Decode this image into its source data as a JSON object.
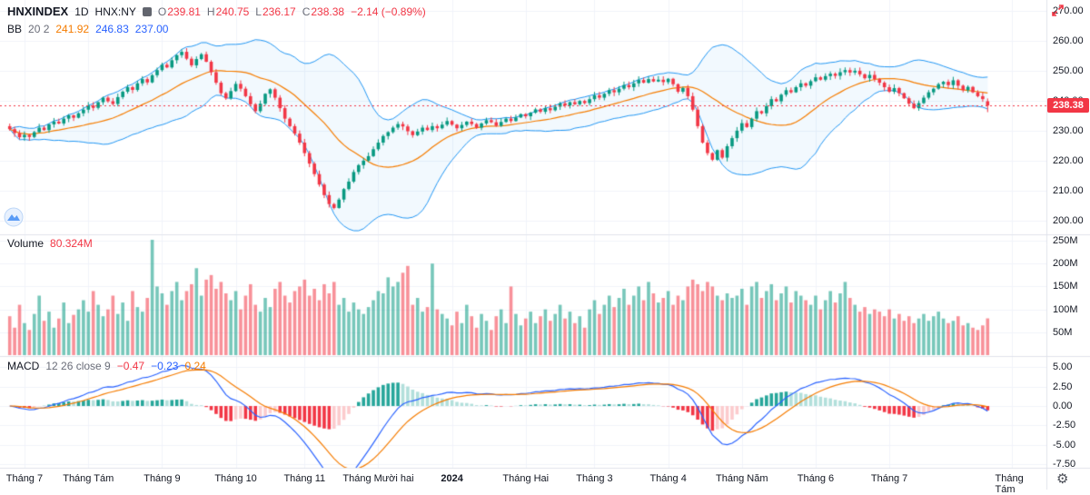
{
  "header": {
    "symbol": "HNXINDEX",
    "interval": "1D",
    "exchange": "HNX:NY",
    "ohlc": {
      "o_label": "O",
      "o": "239.81",
      "h_label": "H",
      "h": "240.75",
      "l_label": "L",
      "l": "236.17",
      "c_label": "C",
      "c": "238.38",
      "change": "−2.14 (−0.89%)"
    },
    "bb": {
      "name": "BB",
      "params": "20 2",
      "basis": "241.92",
      "upper": "246.83",
      "lower": "237.00"
    }
  },
  "volume_panel": {
    "label": "Volume",
    "value": "80.324M"
  },
  "macd_panel": {
    "label": "MACD",
    "params": "12 26 close 9",
    "hist": "−0.47",
    "macd": "−0.23",
    "signal": "0.24"
  },
  "price_badge": "238.38",
  "icons": {
    "settings": "⚙",
    "watermark": "mountain-logo",
    "maximize": "expand-arrows"
  },
  "colors": {
    "up": "#089981",
    "down": "#f23645",
    "vol_up": "rgba(8,153,129,0.55)",
    "vol_down": "rgba(242,54,69,0.55)",
    "bb_band": "#2196f3",
    "bb_basis": "#f57c00",
    "bb_fill": "rgba(33,150,243,0.06)",
    "macd_line": "#2962ff",
    "signal_line": "#f57c00",
    "hist_up": "#26a69a",
    "hist_up_light": "#b2dfdb",
    "hist_down": "#f23645",
    "hist_down_light": "#fccbcd",
    "grid": "#f0f3fa",
    "separator": "#e0e3eb",
    "badge_bg": "#f23645"
  },
  "chart_data": {
    "type": "candlestick",
    "title": "HNXINDEX 1D HNX:NY",
    "panels": [
      "price+bollinger",
      "volume",
      "macd"
    ],
    "price_axis_ticks": [
      {
        "label": "270.00",
        "v": 270
      },
      {
        "label": "260.00",
        "v": 260
      },
      {
        "label": "250.00",
        "v": 250
      },
      {
        "label": "240.00",
        "v": 240
      },
      {
        "label": "230.00",
        "v": 230
      },
      {
        "label": "220.00",
        "v": 220
      },
      {
        "label": "210.00",
        "v": 210
      },
      {
        "label": "200.00",
        "v": 200
      }
    ],
    "volume_axis_ticks": [
      {
        "label": "250M",
        "v": 250
      },
      {
        "label": "200M",
        "v": 200
      },
      {
        "label": "150M",
        "v": 150
      },
      {
        "label": "100M",
        "v": 100
      },
      {
        "label": "50M",
        "v": 50
      }
    ],
    "macd_axis_ticks": [
      {
        "label": "5.00",
        "v": 5
      },
      {
        "label": "2.50",
        "v": 2.5
      },
      {
        "label": "0.00",
        "v": 0
      },
      {
        "label": "-2.50",
        "v": -2.5
      },
      {
        "label": "-5.00",
        "v": -5
      },
      {
        "label": "-7.50",
        "v": -7.5
      }
    ],
    "x_labels": [
      {
        "label": "Tháng 7",
        "i": 3
      },
      {
        "label": "Tháng Tám",
        "i": 16
      },
      {
        "label": "Tháng 9",
        "i": 31
      },
      {
        "label": "Tháng 10",
        "i": 46
      },
      {
        "label": "Tháng 11",
        "i": 60
      },
      {
        "label": "Tháng Mười hai",
        "i": 75
      },
      {
        "label": "2024",
        "i": 90,
        "bold": true
      },
      {
        "label": "Tháng Hai",
        "i": 105
      },
      {
        "label": "Tháng 3",
        "i": 119
      },
      {
        "label": "Tháng 4",
        "i": 134
      },
      {
        "label": "Tháng Năm",
        "i": 149
      },
      {
        "label": "Tháng 6",
        "i": 164
      },
      {
        "label": "Tháng 7",
        "i": 179
      },
      {
        "label": "Tháng Tám",
        "i": 204
      }
    ],
    "price_range": [
      195.4,
      273.6
    ],
    "volume_range_m": [
      0,
      264
    ],
    "macd_range": [
      -7.97,
      6.33
    ],
    "last_price": 238.38,
    "last_candle": {
      "open": 239.81,
      "high": 240.75,
      "low": 236.17,
      "close": 238.38
    },
    "indicators": {
      "bollinger": {
        "period": 20,
        "stdev": 2
      },
      "macd": {
        "fast": 12,
        "slow": 26,
        "signal": 9
      }
    },
    "closes": [
      230.5,
      229.2,
      227.8,
      228.6,
      227.9,
      229.5,
      231.0,
      230.2,
      232.1,
      233.0,
      232.4,
      234.0,
      235.1,
      234.3,
      235.8,
      237.0,
      238.4,
      237.6,
      239.5,
      241.0,
      239.8,
      238.9,
      241.2,
      243.0,
      244.5,
      243.6,
      245.8,
      247.2,
      246.1,
      248.5,
      250.2,
      252.0,
      251.1,
      253.5,
      255.2,
      256.3,
      254.0,
      251.8,
      253.9,
      255.5,
      253.0,
      249.5,
      246.0,
      242.5,
      240.8,
      243.2,
      245.6,
      244.0,
      241.5,
      238.8,
      236.5,
      239.0,
      242.3,
      243.8,
      241.0,
      237.5,
      234.0,
      231.5,
      229.0,
      226.0,
      222.5,
      219.0,
      215.5,
      212.0,
      208.5,
      205.5,
      204.2,
      207.0,
      210.5,
      213.0,
      216.2,
      218.5,
      220.0,
      221.5,
      223.8,
      226.0,
      228.2,
      229.5,
      231.0,
      232.2,
      231.4,
      229.8,
      228.5,
      229.7,
      231.0,
      230.2,
      231.5,
      230.8,
      232.0,
      233.2,
      232.0,
      230.8,
      231.9,
      233.0,
      232.2,
      231.0,
      232.4,
      233.5,
      232.8,
      231.6,
      232.9,
      234.0,
      233.2,
      234.4,
      235.5,
      234.8,
      236.0,
      237.1,
      236.3,
      237.5,
      236.8,
      238.0,
      239.1,
      238.4,
      239.5,
      238.8,
      239.9,
      239.2,
      240.5,
      241.8,
      241.0,
      242.3,
      243.5,
      242.8,
      244.0,
      245.2,
      244.5,
      245.8,
      246.9,
      246.0,
      247.2,
      246.4,
      247.0,
      246.2,
      247.3,
      245.5,
      243.0,
      244.2,
      241.5,
      237.0,
      231.5,
      226.0,
      222.5,
      220.3,
      223.5,
      221.0,
      224.8,
      227.5,
      230.0,
      232.5,
      231.2,
      234.0,
      236.5,
      235.8,
      238.2,
      240.5,
      239.8,
      242.0,
      243.5,
      242.8,
      244.5,
      245.8,
      245.0,
      246.5,
      247.8,
      247.0,
      248.2,
      249.0,
      248.3,
      249.5,
      250.2,
      249.4,
      250.0,
      248.8,
      247.5,
      248.6,
      247.2,
      246.0,
      244.5,
      243.0,
      244.2,
      242.5,
      240.8,
      239.0,
      237.5,
      239.2,
      241.0,
      242.8,
      244.0,
      245.5,
      246.3,
      245.2,
      246.8,
      245.0,
      243.5,
      244.6,
      242.8,
      241.5,
      240.52,
      238.38
    ],
    "volumes": [
      85,
      60,
      110,
      70,
      55,
      90,
      130,
      75,
      95,
      60,
      80,
      115,
      70,
      88,
      100,
      120,
      95,
      140,
      110,
      85,
      100,
      130,
      90,
      115,
      75,
      140,
      105,
      95,
      125,
      252,
      150,
      135,
      110,
      140,
      160,
      120,
      140,
      155,
      190,
      130,
      165,
      175,
      145,
      160,
      135,
      120,
      140,
      100,
      130,
      155,
      110,
      95,
      125,
      105,
      145,
      160,
      130,
      115,
      140,
      150,
      165,
      130,
      145,
      120,
      155,
      135,
      160,
      110,
      125,
      95,
      115,
      100,
      90,
      105,
      120,
      140,
      135,
      170,
      150,
      160,
      180,
      195,
      110,
      125,
      95,
      105,
      200,
      100,
      90,
      80,
      65,
      95,
      70,
      110,
      85,
      60,
      90,
      75,
      55,
      85,
      100,
      70,
      150,
      90,
      65,
      80,
      95,
      70,
      85,
      100,
      75,
      90,
      110,
      80,
      95,
      70,
      85,
      60,
      100,
      120,
      90,
      110,
      130,
      105,
      125,
      145,
      110,
      130,
      150,
      120,
      160,
      135,
      115,
      125,
      140,
      110,
      130,
      120,
      150,
      165,
      155,
      140,
      160,
      150,
      130,
      120,
      135,
      125,
      130,
      145,
      110,
      150,
      160,
      125,
      140,
      155,
      120,
      135,
      150,
      115,
      140,
      130,
      120,
      110,
      130,
      100,
      120,
      140,
      115,
      135,
      160,
      125,
      110,
      95,
      105,
      90,
      100,
      95,
      85,
      100,
      80,
      90,
      75,
      85,
      70,
      80,
      90,
      75,
      85,
      95,
      80,
      70,
      75,
      85,
      65,
      70,
      60,
      55,
      65,
      80.324
    ]
  }
}
